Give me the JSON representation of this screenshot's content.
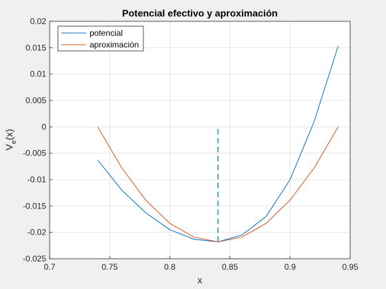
{
  "chart_data": {
    "type": "line",
    "title": "Potencial efectivo y aproximación",
    "xlabel": "x",
    "ylabel_main": "V",
    "ylabel_sub": "e",
    "ylabel_tail": "(x)",
    "xlim": [
      0.7,
      0.95
    ],
    "ylim": [
      -0.025,
      0.02
    ],
    "xticks": [
      0.7,
      0.75,
      0.8,
      0.85,
      0.9,
      0.95
    ],
    "yticks": [
      -0.025,
      -0.02,
      -0.015,
      -0.01,
      -0.005,
      0,
      0.005,
      0.01,
      0.015,
      0.02
    ],
    "xtick_labels": [
      "0.7",
      "0.75",
      "0.8",
      "0.85",
      "0.9",
      "0.95"
    ],
    "ytick_labels": [
      "-0.025",
      "-0.02",
      "-0.015",
      "-0.01",
      "-0.005",
      "0",
      "0.005",
      "0.01",
      "0.015",
      "0.02"
    ],
    "grid": true,
    "legend_position": "top-left",
    "series": [
      {
        "name": "potencial",
        "color": "#0072BD",
        "x": [
          0.74,
          0.76,
          0.78,
          0.8,
          0.82,
          0.84,
          0.86,
          0.88,
          0.9,
          0.92,
          0.94
        ],
        "y": [
          -0.0063,
          -0.012,
          -0.0163,
          -0.0195,
          -0.0213,
          -0.0218,
          -0.0205,
          -0.017,
          -0.01,
          0.001,
          0.0153
        ]
      },
      {
        "name": "aproximación",
        "color": "#D95319",
        "x": [
          0.74,
          0.76,
          0.78,
          0.8,
          0.82,
          0.84,
          0.86,
          0.88,
          0.9,
          0.92,
          0.94
        ],
        "y": [
          0.0,
          -0.0078,
          -0.0139,
          -0.0183,
          -0.0209,
          -0.0218,
          -0.0209,
          -0.0183,
          -0.0139,
          -0.0078,
          0.0
        ]
      }
    ],
    "vertical_marker": {
      "x": 0.84,
      "y_from": -0.0218,
      "y_to": 0.0,
      "color": "#4DA3E0",
      "style": "dashed"
    }
  }
}
